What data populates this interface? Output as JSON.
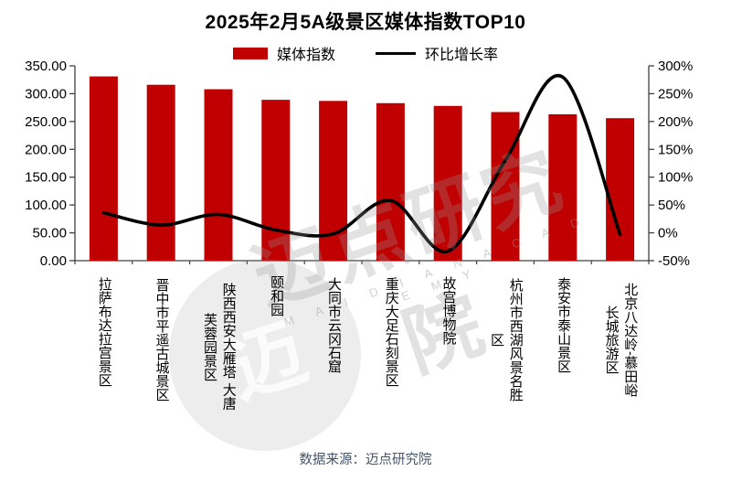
{
  "title": "2025年2月5A级景区媒体指数TOP10",
  "legend": {
    "bar_label": "媒体指数",
    "line_label": "环比增长率",
    "bar_color": "#c00000",
    "line_color": "#000000"
  },
  "source": "数据来源：迈点研究院",
  "watermark": {
    "brand_text": "迈点研究院",
    "brand_letters": "M A I D I A N  A C A D E M Y",
    "logo_glyph": "迈"
  },
  "chart_data": {
    "type": "bar",
    "subtype": "bar+line combo, dual y-axis",
    "title": "2025年2月5A级景区媒体指数TOP10",
    "categories": [
      "拉萨布达拉宫景区",
      "晋中市平遥古城景区",
      "陕西西安大雁塔 大唐\n芙蓉园景区",
      "颐和园",
      "大同市云冈石窟",
      "重庆大足石刻景区",
      "故宫博物院",
      "杭州市西湖风景名胜\n区",
      "泰安市泰山景区",
      "北京八达岭-慕田峪\n长城旅游区"
    ],
    "series": [
      {
        "name": "媒体指数",
        "type": "bar",
        "y_axis": "left",
        "color": "#c00000",
        "values": [
          331,
          316,
          308,
          289,
          287,
          283,
          278,
          267,
          263,
          256
        ]
      },
      {
        "name": "环比增长率",
        "type": "line",
        "y_axis": "right",
        "color": "#000000",
        "values_percent": [
          36,
          14,
          33,
          5,
          -2,
          58,
          -33,
          130,
          280,
          -3
        ]
      }
    ],
    "left_axis": {
      "min": 0,
      "max": 350,
      "step": 50,
      "tick_labels": [
        "0.00",
        "50.00",
        "100.00",
        "150.00",
        "200.00",
        "250.00",
        "300.00",
        "350.00"
      ]
    },
    "right_axis": {
      "min": -50,
      "max": 300,
      "step": 50,
      "tick_labels": [
        "-50%",
        "0%",
        "50%",
        "100%",
        "150%",
        "200%",
        "250%",
        "300%"
      ]
    },
    "grid": false,
    "legend_position": "top-center"
  }
}
